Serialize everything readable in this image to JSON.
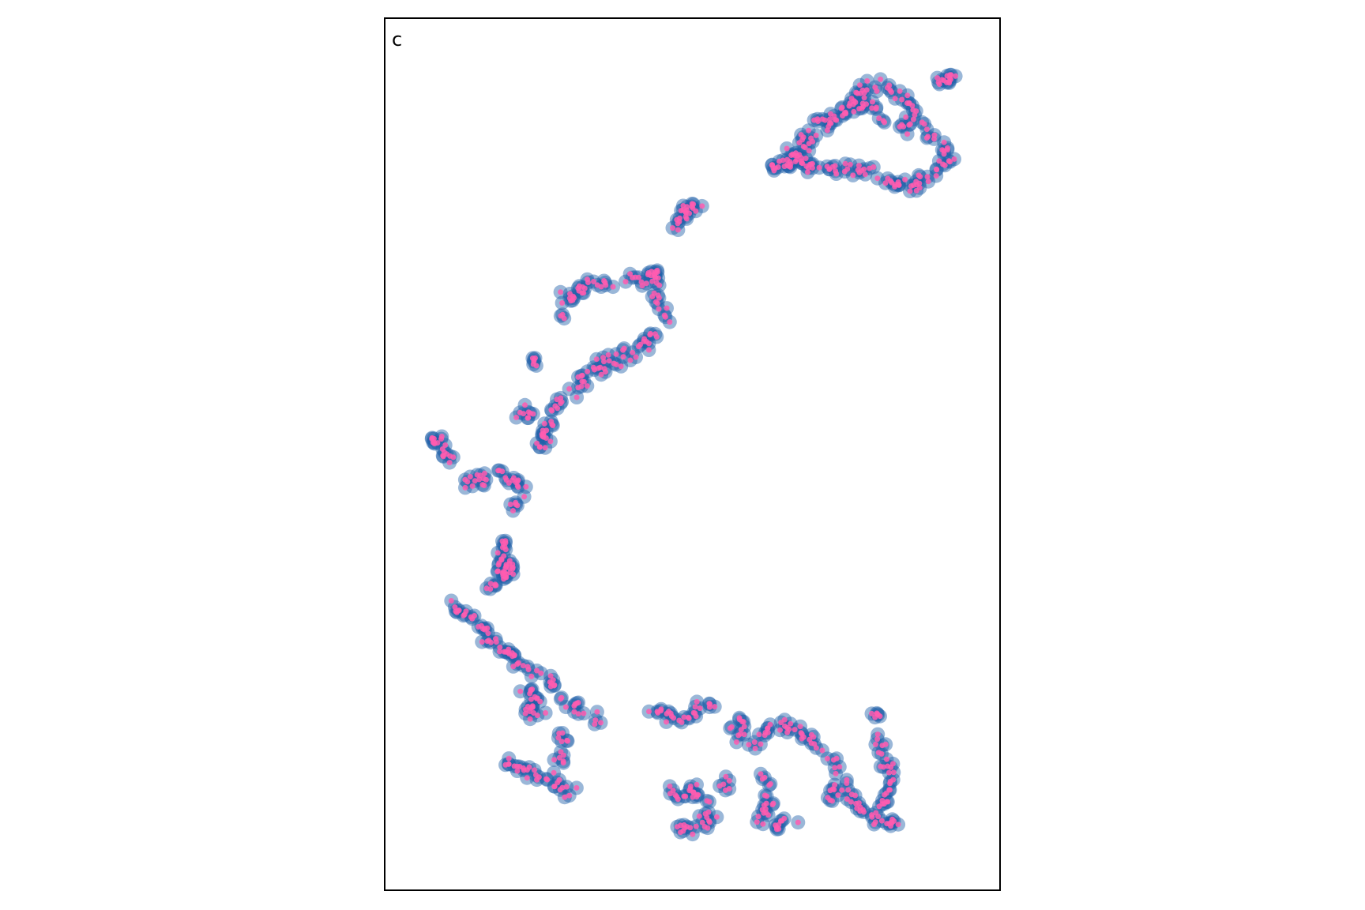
{
  "panel_label": "c",
  "chart_data": {
    "type": "scatter",
    "title": "",
    "xlabel": "",
    "ylabel": "",
    "xlim": [
      0,
      100
    ],
    "ylim": [
      0,
      100
    ],
    "axes_ticks": false,
    "grid": false,
    "legend": "none",
    "marker_style": {
      "outer_fill": "#1f5fa8",
      "outer_opacity": 0.45,
      "inner_fill": "#ff5cb0",
      "inner_opacity": 0.85
    },
    "clusters": [
      {
        "path": [
          [
            62,
            83
          ],
          [
            66,
            85
          ],
          [
            70,
            87
          ],
          [
            73,
            89
          ],
          [
            76,
            91
          ],
          [
            79,
            93
          ],
          [
            82,
            94
          ],
          [
            85,
            93
          ],
          [
            87,
            92
          ],
          [
            89,
            90
          ],
          [
            91,
            88
          ],
          [
            93,
            87
          ],
          [
            94,
            85
          ],
          [
            91,
            83
          ],
          [
            88,
            82
          ],
          [
            85,
            82
          ],
          [
            82,
            83
          ],
          [
            79,
            84
          ],
          [
            76,
            84
          ],
          [
            73,
            84
          ],
          [
            70,
            84
          ],
          [
            68,
            85
          ],
          [
            65,
            84
          ]
        ],
        "count": 150,
        "spread": 0.8
      },
      {
        "path": [
          [
            68,
            87
          ],
          [
            71,
            89
          ],
          [
            74,
            90
          ],
          [
            77,
            91
          ],
          [
            80,
            92
          ],
          [
            83,
            90
          ],
          [
            86,
            89
          ],
          [
            88,
            88
          ]
        ],
        "count": 40,
        "spread": 0.9
      },
      {
        "path": [
          [
            91,
            94
          ],
          [
            95,
            95
          ]
        ],
        "count": 14,
        "spread": 0.6
      },
      {
        "path": [
          [
            47,
            77
          ],
          [
            49,
            79
          ],
          [
            51,
            80
          ]
        ],
        "count": 22,
        "spread": 0.8
      },
      {
        "path": [
          [
            27,
            66
          ],
          [
            29,
            69
          ],
          [
            32,
            70
          ],
          [
            35,
            70
          ],
          [
            38,
            71
          ],
          [
            41,
            71
          ]
        ],
        "count": 35,
        "spread": 0.9
      },
      {
        "path": [
          [
            43,
            72
          ],
          [
            44,
            69
          ],
          [
            45,
            67
          ],
          [
            47,
            66
          ]
        ],
        "count": 26,
        "spread": 0.8
      },
      {
        "path": [
          [
            44,
            65
          ],
          [
            42,
            63
          ],
          [
            39,
            62
          ],
          [
            36,
            61
          ],
          [
            33,
            60
          ],
          [
            30,
            58
          ],
          [
            28,
            57
          ],
          [
            26,
            55
          ],
          [
            25,
            53
          ],
          [
            24,
            50
          ]
        ],
        "count": 60,
        "spread": 0.9
      },
      {
        "path": [
          [
            23,
            61
          ]
        ],
        "count": 6,
        "spread": 0.5
      },
      {
        "path": [
          [
            20,
            55
          ],
          [
            22,
            55
          ],
          [
            24,
            54
          ]
        ],
        "count": 10,
        "spread": 0.8
      },
      {
        "path": [
          [
            24,
            52
          ],
          [
            26,
            54
          ]
        ],
        "count": 8,
        "spread": 0.7
      },
      {
        "path": [
          [
            5,
            51
          ],
          [
            6,
            52
          ],
          [
            8,
            50
          ],
          [
            9,
            49
          ]
        ],
        "count": 18,
        "spread": 0.8
      },
      {
        "path": [
          [
            11,
            46
          ],
          [
            13,
            47
          ],
          [
            15,
            47
          ]
        ],
        "count": 14,
        "spread": 0.8
      },
      {
        "path": [
          [
            17,
            48
          ],
          [
            19,
            47
          ],
          [
            21,
            46
          ],
          [
            20,
            44
          ],
          [
            19,
            43
          ]
        ],
        "count": 20,
        "spread": 0.8
      },
      {
        "path": [
          [
            18,
            40
          ],
          [
            17,
            38
          ],
          [
            17,
            36
          ],
          [
            18,
            35
          ],
          [
            19,
            37
          ]
        ],
        "count": 34,
        "spread": 0.9
      },
      {
        "path": [
          [
            15,
            34
          ],
          [
            17,
            34
          ]
        ],
        "count": 6,
        "spread": 0.6
      },
      {
        "path": [
          [
            9,
            32
          ],
          [
            11,
            31
          ],
          [
            13,
            30
          ],
          [
            15,
            28
          ],
          [
            17,
            27
          ],
          [
            20,
            25
          ],
          [
            23,
            24
          ],
          [
            25,
            23
          ],
          [
            27,
            23
          ]
        ],
        "count": 52,
        "spread": 0.8
      },
      {
        "path": [
          [
            22,
            22
          ],
          [
            23,
            20
          ],
          [
            22,
            19
          ],
          [
            24,
            19
          ]
        ],
        "count": 22,
        "spread": 0.8
      },
      {
        "path": [
          [
            28,
            21
          ],
          [
            30,
            20
          ],
          [
            32,
            19
          ],
          [
            34,
            18
          ]
        ],
        "count": 14,
        "spread": 0.8
      },
      {
        "path": [
          [
            28,
            17
          ],
          [
            28,
            15
          ],
          [
            27,
            13
          ]
        ],
        "count": 12,
        "spread": 0.8
      },
      {
        "path": [
          [
            18,
            13
          ],
          [
            20,
            13
          ],
          [
            22,
            12
          ],
          [
            24,
            12
          ],
          [
            26,
            12
          ],
          [
            27,
            10
          ],
          [
            29,
            10
          ]
        ],
        "count": 30,
        "spread": 0.8
      },
      {
        "path": [
          [
            42,
            20
          ],
          [
            45,
            19
          ],
          [
            48,
            18
          ],
          [
            51,
            20
          ],
          [
            54,
            20
          ]
        ],
        "count": 26,
        "spread": 0.8
      },
      {
        "path": [
          [
            57,
            18
          ],
          [
            59,
            18
          ],
          [
            58,
            16
          ]
        ],
        "count": 12,
        "spread": 0.8
      },
      {
        "path": [
          [
            55,
            12
          ],
          [
            56,
            10
          ]
        ],
        "count": 6,
        "spread": 0.8
      },
      {
        "path": [
          [
            46,
            10
          ],
          [
            48,
            9
          ],
          [
            50,
            10
          ],
          [
            52,
            9
          ],
          [
            53,
            7
          ],
          [
            51,
            6
          ],
          [
            49,
            5
          ],
          [
            47,
            6
          ]
        ],
        "count": 40,
        "spread": 0.8
      },
      {
        "path": [
          [
            60,
            15
          ],
          [
            62,
            17
          ],
          [
            65,
            18
          ],
          [
            68,
            17
          ],
          [
            71,
            16
          ]
        ],
        "count": 30,
        "spread": 0.8
      },
      {
        "path": [
          [
            62,
            12
          ],
          [
            64,
            10
          ],
          [
            63,
            8
          ],
          [
            62,
            6
          ],
          [
            65,
            6
          ],
          [
            68,
            6
          ]
        ],
        "count": 28,
        "spread": 0.8
      },
      {
        "path": [
          [
            72,
            15
          ],
          [
            75,
            12
          ],
          [
            77,
            10
          ],
          [
            79,
            8
          ],
          [
            81,
            7
          ],
          [
            83,
            6
          ],
          [
            85,
            6
          ]
        ],
        "count": 38,
        "spread": 0.8
      },
      {
        "path": [
          [
            81,
            16
          ],
          [
            83,
            15
          ],
          [
            84,
            12
          ],
          [
            83,
            9
          ],
          [
            82,
            8
          ]
        ],
        "count": 28,
        "spread": 0.8
      },
      {
        "path": [
          [
            75,
            10
          ],
          [
            73,
            9
          ]
        ],
        "count": 8,
        "spread": 0.8
      },
      {
        "path": [
          [
            81,
            19
          ],
          [
            82,
            19
          ]
        ],
        "count": 6,
        "spread": 0.5
      }
    ]
  }
}
